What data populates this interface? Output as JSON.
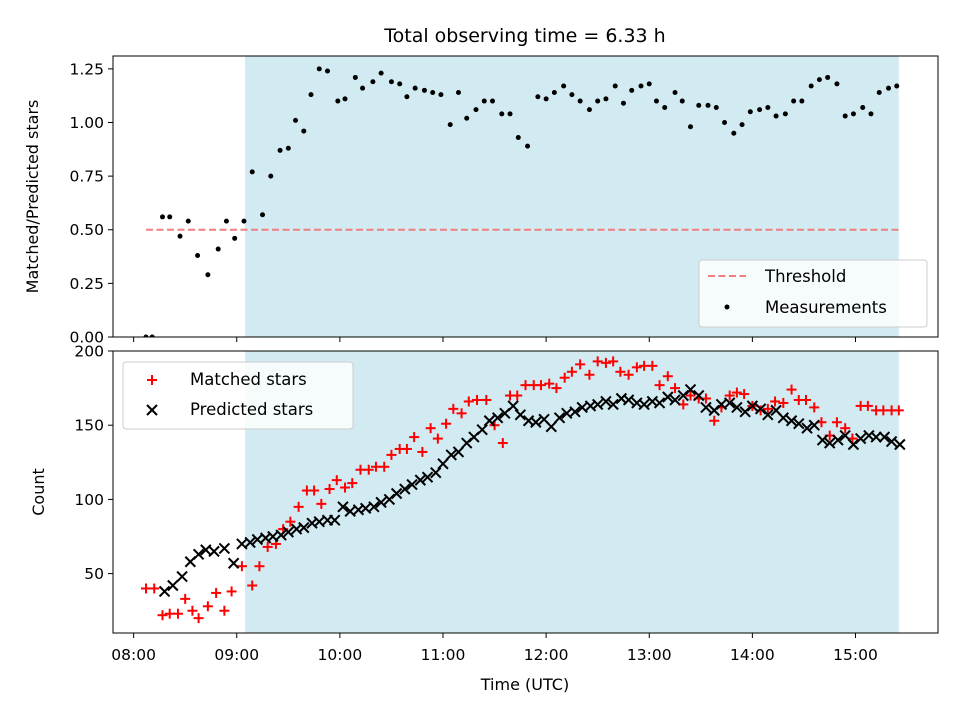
{
  "chart_data": [
    {
      "type": "scatter",
      "title": "Total observing time = 6.33 h",
      "xlabel": "",
      "ylabel": "Matched/Predicted stars",
      "xlim": [
        7.8,
        15.8
      ],
      "ylim": [
        0.0,
        1.31
      ],
      "x_ticks": [
        8,
        9,
        10,
        11,
        12,
        13,
        14,
        15
      ],
      "y_ticks": [
        0.0,
        0.25,
        0.5,
        0.75,
        1.0,
        1.25
      ],
      "y_tick_labels": [
        "0.00",
        "0.25",
        "0.50",
        "0.75",
        "1.00",
        "1.25"
      ],
      "shaded_span": [
        9.08,
        15.42
      ],
      "colors": {
        "shade": "#add8e6",
        "threshold": "#f08080",
        "measurements": "#000000"
      },
      "legend": {
        "placement": "lower right",
        "entries": [
          "Threshold",
          "Measurements"
        ]
      },
      "threshold": {
        "name": "Threshold",
        "y": 0.5,
        "x": [
          8.12,
          15.42
        ]
      },
      "measurements": {
        "name": "Measurements",
        "x": [
          8.12,
          8.18,
          8.28,
          8.35,
          8.45,
          8.53,
          8.62,
          8.72,
          8.82,
          8.9,
          8.98,
          9.07,
          9.15,
          9.25,
          9.33,
          9.42,
          9.5,
          9.57,
          9.65,
          9.72,
          9.8,
          9.88,
          9.98,
          10.05,
          10.15,
          10.22,
          10.32,
          10.4,
          10.5,
          10.58,
          10.65,
          10.73,
          10.82,
          10.9,
          10.98,
          11.07,
          11.15,
          11.23,
          11.32,
          11.4,
          11.48,
          11.57,
          11.65,
          11.73,
          11.82,
          11.92,
          12.0,
          12.08,
          12.17,
          12.25,
          12.33,
          12.42,
          12.5,
          12.58,
          12.67,
          12.75,
          12.83,
          12.92,
          13.0,
          13.07,
          13.15,
          13.25,
          13.32,
          13.4,
          13.48,
          13.57,
          13.65,
          13.73,
          13.82,
          13.9,
          13.98,
          14.07,
          14.15,
          14.23,
          14.32,
          14.4,
          14.48,
          14.57,
          14.65,
          14.73,
          14.82,
          14.9,
          14.98,
          15.07,
          15.15,
          15.23,
          15.32,
          15.4
        ],
        "y": [
          0.0,
          0.0,
          0.56,
          0.56,
          0.47,
          0.54,
          0.38,
          0.29,
          0.41,
          0.54,
          0.46,
          0.54,
          0.77,
          0.57,
          0.75,
          0.87,
          0.88,
          1.01,
          0.96,
          1.13,
          1.25,
          1.24,
          1.1,
          1.11,
          1.21,
          1.16,
          1.19,
          1.23,
          1.19,
          1.18,
          1.12,
          1.16,
          1.15,
          1.14,
          1.13,
          0.99,
          1.14,
          1.02,
          1.06,
          1.1,
          1.1,
          1.04,
          1.04,
          0.93,
          0.89,
          1.12,
          1.11,
          1.14,
          1.17,
          1.13,
          1.1,
          1.06,
          1.1,
          1.11,
          1.17,
          1.09,
          1.15,
          1.17,
          1.18,
          1.1,
          1.07,
          1.14,
          1.1,
          0.98,
          1.08,
          1.08,
          1.07,
          1.0,
          0.95,
          0.99,
          1.05,
          1.06,
          1.07,
          1.03,
          1.04,
          1.1,
          1.1,
          1.17,
          1.2,
          1.21,
          1.18,
          1.03,
          1.04,
          1.07,
          1.04,
          1.14,
          1.16,
          1.17
        ]
      }
    },
    {
      "type": "scatter",
      "xlabel": "Time (UTC)",
      "ylabel": "Count",
      "xlim": [
        7.8,
        15.8
      ],
      "ylim": [
        10,
        200
      ],
      "x_ticks": [
        8,
        9,
        10,
        11,
        12,
        13,
        14,
        15
      ],
      "x_tick_labels": [
        "08:00",
        "09:00",
        "10:00",
        "11:00",
        "12:00",
        "13:00",
        "14:00",
        "15:00"
      ],
      "y_ticks": [
        50,
        100,
        150,
        200
      ],
      "y_tick_labels": [
        "50",
        "100",
        "150",
        "200"
      ],
      "shaded_span": [
        9.08,
        15.42
      ],
      "colors": {
        "shade": "#add8e6",
        "matched": "#ff0000",
        "predicted": "#000000"
      },
      "legend": {
        "placement": "upper left",
        "entries": [
          "Matched stars",
          "Predicted stars"
        ]
      },
      "series": [
        {
          "name": "Matched stars",
          "marker": "+",
          "x": [
            8.12,
            8.2,
            8.28,
            8.35,
            8.43,
            8.5,
            8.57,
            8.63,
            8.72,
            8.8,
            8.88,
            8.95,
            9.05,
            9.15,
            9.22,
            9.3,
            9.38,
            9.45,
            9.52,
            9.6,
            9.68,
            9.75,
            9.82,
            9.9,
            9.97,
            10.05,
            10.12,
            10.2,
            10.28,
            10.35,
            10.43,
            10.5,
            10.58,
            10.65,
            10.72,
            10.8,
            10.88,
            10.95,
            11.03,
            11.1,
            11.18,
            11.25,
            11.33,
            11.42,
            11.5,
            11.58,
            11.65,
            11.72,
            11.8,
            11.88,
            11.95,
            12.03,
            12.1,
            12.18,
            12.25,
            12.33,
            12.42,
            12.5,
            12.58,
            12.65,
            12.72,
            12.8,
            12.88,
            12.95,
            13.03,
            13.1,
            13.18,
            13.25,
            13.33,
            13.4,
            13.48,
            13.55,
            13.63,
            13.7,
            13.78,
            13.85,
            13.92,
            14.0,
            14.08,
            14.15,
            14.22,
            14.3,
            14.38,
            14.45,
            14.52,
            14.6,
            14.67,
            14.75,
            14.82,
            14.9,
            14.97,
            15.05,
            15.12,
            15.2,
            15.27,
            15.35,
            15.42
          ],
          "y": [
            40,
            40,
            22,
            23,
            23,
            33,
            25,
            20,
            28,
            37,
            25,
            38,
            55,
            42,
            55,
            68,
            70,
            80,
            85,
            95,
            106,
            106,
            97,
            107,
            113,
            108,
            111,
            120,
            120,
            122,
            122,
            130,
            134,
            134,
            142,
            132,
            148,
            141,
            151,
            161,
            158,
            166,
            167,
            167,
            150,
            138,
            170,
            170,
            177,
            177,
            177,
            178,
            175,
            182,
            186,
            191,
            184,
            193,
            192,
            193,
            186,
            184,
            189,
            190,
            190,
            177,
            183,
            175,
            164,
            170,
            168,
            168,
            153,
            162,
            170,
            172,
            171,
            163,
            160,
            161,
            166,
            165,
            174,
            167,
            167,
            162,
            152,
            143,
            152,
            148,
            141,
            163,
            163,
            160,
            160,
            160,
            160
          ]
        },
        {
          "name": "Predicted stars",
          "marker": "x",
          "x": [
            8.3,
            8.38,
            8.47,
            8.55,
            8.63,
            8.7,
            8.78,
            8.88,
            8.97,
            9.05,
            9.13,
            9.2,
            9.28,
            9.35,
            9.43,
            9.5,
            9.58,
            9.65,
            9.73,
            9.8,
            9.88,
            9.95,
            10.03,
            10.1,
            10.18,
            10.25,
            10.33,
            10.4,
            10.48,
            10.55,
            10.63,
            10.7,
            10.78,
            10.85,
            10.93,
            11.0,
            11.08,
            11.15,
            11.23,
            11.3,
            11.38,
            11.45,
            11.53,
            11.6,
            11.68,
            11.75,
            11.83,
            11.9,
            11.98,
            12.05,
            12.13,
            12.2,
            12.28,
            12.35,
            12.43,
            12.5,
            12.58,
            12.65,
            12.73,
            12.8,
            12.88,
            12.95,
            13.03,
            13.1,
            13.18,
            13.25,
            13.33,
            13.4,
            13.48,
            13.55,
            13.63,
            13.7,
            13.78,
            13.85,
            13.93,
            14.0,
            14.08,
            14.15,
            14.23,
            14.3,
            14.38,
            14.45,
            14.53,
            14.6,
            14.68,
            14.75,
            14.83,
            14.9,
            14.98,
            15.05,
            15.13,
            15.2,
            15.28,
            15.35,
            15.43
          ],
          "y": [
            38,
            42,
            48,
            58,
            63,
            66,
            65,
            67,
            57,
            70,
            71,
            73,
            74,
            75,
            76,
            78,
            80,
            81,
            84,
            85,
            86,
            86,
            95,
            92,
            93,
            94,
            95,
            98,
            100,
            104,
            107,
            110,
            113,
            115,
            118,
            124,
            130,
            132,
            138,
            142,
            147,
            153,
            155,
            158,
            163,
            157,
            153,
            152,
            154,
            149,
            155,
            158,
            159,
            162,
            163,
            164,
            166,
            164,
            168,
            167,
            165,
            164,
            166,
            165,
            169,
            167,
            170,
            174,
            170,
            162,
            160,
            164,
            165,
            162,
            159,
            163,
            161,
            157,
            160,
            155,
            153,
            151,
            148,
            150,
            140,
            138,
            140,
            143,
            137,
            141,
            143,
            142,
            142,
            139,
            137
          ]
        }
      ]
    }
  ]
}
